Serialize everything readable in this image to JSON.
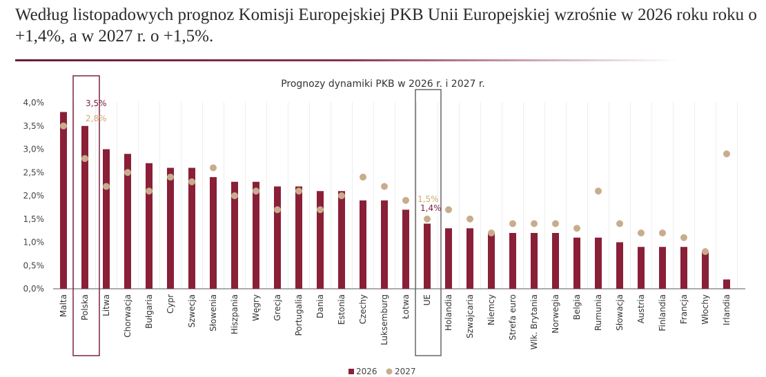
{
  "headline": "Według listopadowych prognoz Komisji Europejskiej PKB Unii Europejskiej wzrośnie w 2026 roku roku o +1,4%, a w 2027 r. o +1,5%.",
  "colors": {
    "bar_2026": "#8a1f38",
    "dot_2027": "#c8ad8c",
    "label_2026": "#7a2040",
    "label_2027": "#d4a868",
    "highlight_polska": "#7a2040",
    "highlight_ue": "#666666"
  },
  "chart_data": {
    "type": "bar",
    "title": "Prognozy dynamiki PKB w 2026 r. i 2027 r.",
    "xlabel": "",
    "ylabel": "",
    "ylim": [
      0,
      4.0
    ],
    "yticks": [
      "0,0%",
      "0,5%",
      "1,0%",
      "1,5%",
      "2,0%",
      "2,5%",
      "3,0%",
      "3,5%",
      "4,0%"
    ],
    "grid": "vertical",
    "legend_position": "bottom",
    "categories": [
      "Malta",
      "Polska",
      "Litwa",
      "Chorwacja",
      "Bułgaria",
      "Cypr",
      "Szwecja",
      "Słowenia",
      "Hiszpania",
      "Węgry",
      "Grecja",
      "Portugalia",
      "Dania",
      "Estonia",
      "Czechy",
      "Luksemburg",
      "Łotwa",
      "UE",
      "Holandia",
      "Szwajcaria",
      "Niemcy",
      "Strefa euro",
      "Wlk. Brytania",
      "Norwegia",
      "Belgia",
      "Rumunia",
      "Słowacja",
      "Austria",
      "Finlandia",
      "Francja",
      "Włochy",
      "Irlandia"
    ],
    "series": [
      {
        "name": "2026",
        "kind": "bar",
        "values": [
          3.8,
          3.5,
          3.0,
          2.9,
          2.7,
          2.6,
          2.6,
          2.4,
          2.3,
          2.3,
          2.2,
          2.2,
          2.1,
          2.1,
          1.9,
          1.9,
          1.7,
          1.4,
          1.3,
          1.3,
          1.2,
          1.2,
          1.2,
          1.2,
          1.1,
          1.1,
          1.0,
          0.9,
          0.9,
          0.9,
          0.8,
          0.2
        ]
      },
      {
        "name": "2027",
        "kind": "dot",
        "values": [
          3.5,
          2.8,
          2.2,
          2.5,
          2.1,
          2.4,
          2.3,
          2.6,
          2.0,
          2.1,
          1.7,
          2.1,
          1.7,
          2.0,
          2.4,
          2.2,
          1.9,
          1.5,
          1.7,
          1.5,
          1.2,
          1.4,
          1.4,
          1.4,
          1.3,
          2.1,
          1.4,
          1.2,
          1.2,
          1.1,
          0.8,
          2.9
        ]
      }
    ],
    "annotations": [
      {
        "category": "Polska",
        "label_2026": "3,5%",
        "label_2027": "2,8%"
      },
      {
        "category": "UE",
        "label_2026": "1,4%",
        "label_2027": "1,5%"
      }
    ]
  }
}
